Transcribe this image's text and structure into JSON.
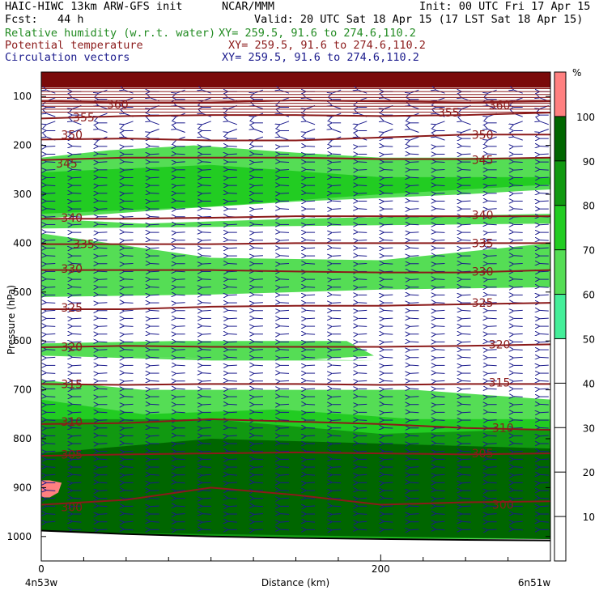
{
  "header": {
    "line1_left": "HAIC-HIWC 13km ARW-GFS init",
    "line1_mid": "NCAR/MMM",
    "line1_right": "Init: 00 UTC Fri 17 Apr 15",
    "line2_left": "Fcst:   44 h",
    "line2_right": "Valid: 20 UTC Sat 18 Apr 15 (17 LST Sat 18 Apr 15)",
    "rh_label": "Relative humidity (w.r.t. water)",
    "rh_xy": "XY= 259.5, 91.6 to 274.6,110.2",
    "theta_label": "Potential temperature",
    "theta_xy": "XY= 259.5, 91.6 to 274.6,110.2",
    "vec_label": "Circulation vectors",
    "vec_xy": "XY= 259.5, 91.6 to 274.6,110.2"
  },
  "colors": {
    "rh": "#228b22",
    "theta": "#8b1a1a",
    "vectors": "#1a1a8c",
    "top_band": "#7a0a0a",
    "ground": "#000000"
  },
  "chart_data": {
    "type": "heatmap",
    "ylabel": "Pressure (hPa)",
    "xlabel": "Distance (km)",
    "x_start_label": "4n53w",
    "x_end_label": "6n51w",
    "xlim": [
      0,
      300
    ],
    "ylim": [
      1050,
      50
    ],
    "x_ticks": [
      0,
      200
    ],
    "y_ticks": [
      100,
      200,
      300,
      400,
      500,
      600,
      700,
      800,
      900,
      1000
    ],
    "colorbar": {
      "unit": "%",
      "levels": [
        10,
        20,
        30,
        40,
        50,
        60,
        70,
        80,
        90,
        100
      ],
      "fills": [
        {
          "from": 50,
          "to": 60,
          "color": "#44ee99"
        },
        {
          "from": 60,
          "to": 70,
          "color": "#55dd55"
        },
        {
          "from": 70,
          "to": 80,
          "color": "#22cc22"
        },
        {
          "from": 80,
          "to": 90,
          "color": "#119911"
        },
        {
          "from": 90,
          "to": 100,
          "color": "#006600"
        },
        {
          "from": 100,
          "to": 110,
          "color": "#ff8080"
        }
      ]
    },
    "rh_regions": [
      {
        "level": 60,
        "top": [
          [
            0,
            225
          ],
          [
            40,
            210
          ],
          [
            90,
            200
          ],
          [
            150,
            215
          ],
          [
            200,
            225
          ],
          [
            300,
            225
          ]
        ],
        "bottom": [
          [
            0,
            350
          ],
          [
            80,
            330
          ],
          [
            150,
            315
          ],
          [
            250,
            300
          ],
          [
            300,
            290
          ]
        ]
      },
      {
        "level": 70,
        "top": [
          [
            0,
            255
          ],
          [
            100,
            240
          ],
          [
            200,
            265
          ],
          [
            300,
            265
          ]
        ],
        "bottom": [
          [
            0,
            340
          ],
          [
            100,
            325
          ],
          [
            200,
            300
          ],
          [
            300,
            280
          ]
        ]
      },
      {
        "level": 60,
        "top": [
          [
            0,
            350
          ],
          [
            60,
            360
          ],
          [
            150,
            350
          ],
          [
            300,
            340
          ]
        ],
        "bottom": [
          [
            0,
            370
          ],
          [
            150,
            365
          ],
          [
            300,
            360
          ]
        ]
      },
      {
        "level": 60,
        "top": [
          [
            0,
            380
          ],
          [
            100,
            430
          ],
          [
            200,
            435
          ],
          [
            300,
            400
          ]
        ],
        "bottom": [
          [
            0,
            510
          ],
          [
            100,
            505
          ],
          [
            200,
            495
          ],
          [
            300,
            490
          ]
        ]
      },
      {
        "level": 60,
        "top": [
          [
            0,
            605
          ],
          [
            80,
            600
          ],
          [
            130,
            600
          ],
          [
            180,
            600
          ],
          [
            196,
            630
          ],
          [
            150,
            640
          ],
          [
            100,
            635
          ],
          [
            0,
            630
          ]
        ],
        "bottom": [
          [
            0,
            630
          ],
          [
            100,
            640
          ],
          [
            196,
            640
          ]
        ]
      },
      {
        "level": 60,
        "top": [
          [
            0,
            680
          ],
          [
            60,
            700
          ],
          [
            140,
            700
          ],
          [
            220,
            700
          ],
          [
            300,
            720
          ]
        ],
        "bottom": [
          [
            0,
            1005
          ],
          [
            300,
            1005
          ]
        ]
      },
      {
        "level": 70,
        "top": [
          [
            0,
            720
          ],
          [
            60,
            750
          ],
          [
            140,
            740
          ],
          [
            220,
            760
          ],
          [
            300,
            760
          ]
        ],
        "bottom": [
          [
            0,
            1000
          ],
          [
            300,
            1005
          ]
        ]
      },
      {
        "level": 80,
        "top": [
          [
            0,
            760
          ],
          [
            100,
            760
          ],
          [
            200,
            790
          ],
          [
            300,
            780
          ]
        ],
        "bottom": [
          [
            0,
            995
          ],
          [
            300,
            1005
          ]
        ]
      },
      {
        "level": 90,
        "top": [
          [
            0,
            830
          ],
          [
            100,
            800
          ],
          [
            200,
            810
          ],
          [
            300,
            820
          ]
        ],
        "bottom": [
          [
            0,
            990
          ],
          [
            300,
            1005
          ]
        ]
      },
      {
        "level": 90,
        "top": [
          [
            0,
            870
          ],
          [
            100,
            840
          ],
          [
            200,
            880
          ],
          [
            300,
            900
          ]
        ],
        "bottom": [
          [
            0,
            985
          ],
          [
            300,
            1005
          ]
        ]
      },
      {
        "level": 100,
        "top": [
          [
            0,
            885
          ],
          [
            5,
            885
          ],
          [
            12,
            890
          ],
          [
            10,
            910
          ],
          [
            5,
            920
          ],
          [
            0,
            920
          ]
        ],
        "bottom": [
          [
            0,
            920
          ]
        ]
      }
    ],
    "theta_contours": [
      {
        "value": 360,
        "x": [
          0,
          50,
          100,
          150,
          200,
          250,
          300
        ],
        "y": [
          110,
          112,
          112,
          108,
          110,
          112,
          110
        ],
        "labels": [
          [
            45,
            116
          ],
          [
            270,
            118
          ]
        ]
      },
      {
        "value": 355,
        "x": [
          0,
          50,
          100,
          150,
          200,
          250,
          300
        ],
        "y": [
          145,
          140,
          138,
          138,
          140,
          138,
          133
        ],
        "labels": [
          [
            25,
            143
          ],
          [
            240,
            133
          ]
        ]
      },
      {
        "value": 350,
        "x": [
          0,
          50,
          100,
          150,
          200,
          250,
          300
        ],
        "y": [
          188,
          186,
          190,
          190,
          184,
          178,
          178
        ],
        "labels": [
          [
            18,
            178
          ],
          [
            260,
            178
          ]
        ]
      },
      {
        "value": 345,
        "x": [
          0,
          50,
          100,
          150,
          200,
          250,
          300
        ],
        "y": [
          230,
          225,
          225,
          225,
          228,
          228,
          225
        ],
        "labels": [
          [
            15,
            237
          ],
          [
            260,
            230
          ]
        ]
      },
      {
        "value": 340,
        "x": [
          0,
          50,
          100,
          150,
          200,
          250,
          300
        ],
        "y": [
          350,
          350,
          348,
          345,
          345,
          345,
          345
        ],
        "labels": [
          [
            18,
            348
          ],
          [
            260,
            342
          ]
        ]
      },
      {
        "value": 335,
        "x": [
          0,
          50,
          100,
          150,
          200,
          250,
          300
        ],
        "y": [
          402,
          402,
          402,
          400,
          400,
          400,
          400
        ],
        "labels": [
          [
            25,
            402
          ],
          [
            260,
            400
          ]
        ]
      },
      {
        "value": 330,
        "x": [
          0,
          50,
          100,
          150,
          200,
          250,
          300
        ],
        "y": [
          455,
          455,
          455,
          458,
          460,
          460,
          455
        ],
        "labels": [
          [
            18,
            452
          ],
          [
            260,
            458
          ]
        ]
      },
      {
        "value": 325,
        "x": [
          0,
          50,
          100,
          150,
          200,
          250,
          300
        ],
        "y": [
          535,
          535,
          530,
          528,
          528,
          525,
          522
        ],
        "labels": [
          [
            18,
            532
          ],
          [
            260,
            522
          ]
        ]
      },
      {
        "value": 320,
        "x": [
          0,
          50,
          100,
          150,
          200,
          250,
          300
        ],
        "y": [
          613,
          610,
          612,
          612,
          612,
          610,
          607
        ],
        "labels": [
          [
            18,
            612
          ],
          [
            270,
            607
          ]
        ]
      },
      {
        "value": 315,
        "x": [
          0,
          50,
          100,
          150,
          200,
          250,
          300
        ],
        "y": [
          688,
          690,
          688,
          688,
          690,
          688,
          688
        ],
        "labels": [
          [
            18,
            688
          ],
          [
            270,
            685
          ]
        ]
      },
      {
        "value": 310,
        "x": [
          0,
          50,
          100,
          150,
          200,
          250,
          300
        ],
        "y": [
          770,
          768,
          760,
          765,
          770,
          778,
          782
        ],
        "labels": [
          [
            18,
            765
          ],
          [
            272,
            778
          ]
        ]
      },
      {
        "value": 305,
        "x": [
          0,
          50,
          100,
          150,
          200,
          250,
          300
        ],
        "y": [
          835,
          832,
          830,
          828,
          830,
          832,
          830
        ],
        "labels": [
          [
            18,
            832
          ],
          [
            260,
            830
          ]
        ]
      },
      {
        "value": 300,
        "x": [
          0,
          50,
          100,
          150,
          200,
          250,
          300
        ],
        "y": [
          935,
          925,
          900,
          915,
          935,
          930,
          928
        ],
        "labels": [
          [
            18,
            940
          ],
          [
            272,
            935
          ]
        ]
      }
    ],
    "ground": {
      "x": [
        0,
        50,
        100,
        150,
        200,
        250,
        300
      ],
      "y": [
        988,
        995,
        1000,
        1003,
        1005,
        1007,
        1008
      ]
    }
  }
}
